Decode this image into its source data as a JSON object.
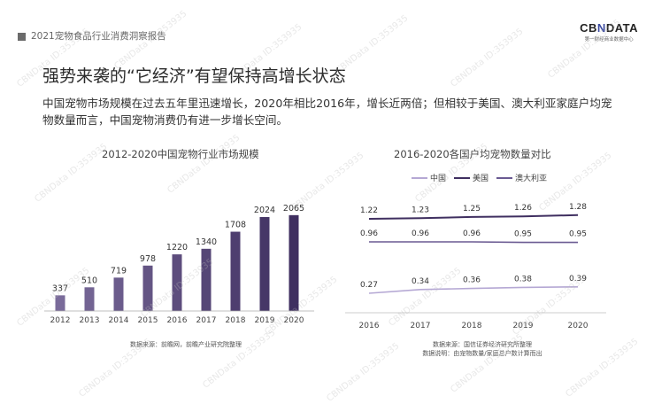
{
  "header": {
    "report_title": "2021宠物食品行业消费洞察报告"
  },
  "logo": {
    "brand_prefix": "CB",
    "brand_n": "N",
    "brand_suffix": "DATA",
    "tagline": "第一财经商业数据中心"
  },
  "slide": {
    "title": "强势来袭的“它经济”有望保持高增长状态",
    "paragraph": "中国宠物市场规模在过去五年里迅速增长，2020年相比2016年，增长近两倍；但相较于美国、澳大利亚家庭户均宠物数量而言，中国宠物消费仍有进一步增长空间。"
  },
  "watermark": "CBNData ID:353935",
  "colors": {
    "bar": "#3f2f60",
    "china": "#b5a8d4",
    "usa": "#3f2f60",
    "australia": "#6a5a92"
  },
  "chart_data": [
    {
      "type": "bar",
      "title": "2012-2020中国宠物行业市场规模",
      "categories": [
        "2012",
        "2013",
        "2014",
        "2015",
        "2016",
        "2017",
        "2018",
        "2019",
        "2020"
      ],
      "values": [
        337,
        510,
        719,
        978,
        1220,
        1340,
        1708,
        2024,
        2065
      ],
      "ylim": [
        0,
        2100
      ],
      "gradient": "bar color darkens with increasing value",
      "source": "数据来源：前瞻网，前瞻产业研究院整理"
    },
    {
      "type": "line",
      "title": "2016-2020各国户均宠物数量对比",
      "x": [
        "2016",
        "2017",
        "2018",
        "2019",
        "2020"
      ],
      "series": [
        {
          "name": "中国",
          "color": "#b5a8d4",
          "values": [
            0.27,
            0.34,
            0.36,
            0.38,
            0.39
          ]
        },
        {
          "name": "美国",
          "color": "#3f2f60",
          "values": [
            1.22,
            1.23,
            1.25,
            1.26,
            1.28
          ]
        },
        {
          "name": "澳大利亚",
          "color": "#6a5a92",
          "values": [
            0.96,
            0.96,
            0.96,
            0.95,
            0.95
          ]
        }
      ],
      "legend": "top",
      "source": "数据来源：国信证券经济研究所整理",
      "note": "数据说明：由宠物数量/家庭总户数计算而出"
    }
  ]
}
